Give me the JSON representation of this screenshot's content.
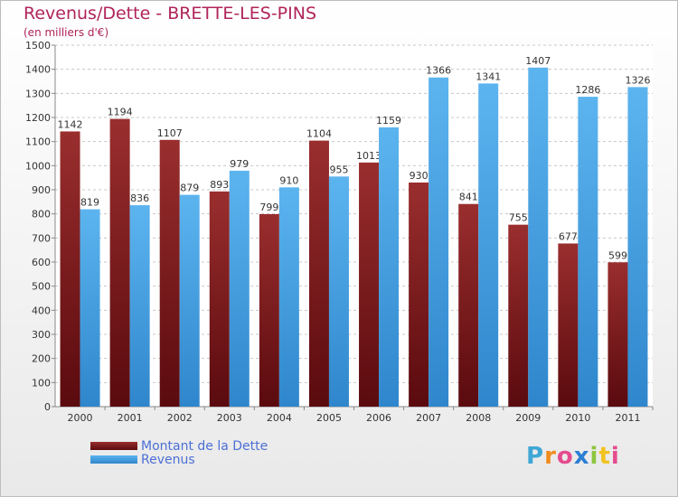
{
  "title": "Revenus/Dette - BRETTE-LES-PINS",
  "subtitle": "(en milliers d'€)",
  "logo": {
    "text": "Proxiti",
    "letters": [
      "P",
      "r",
      "o",
      "x",
      "i",
      "t",
      "i"
    ],
    "colors": [
      "#3fa7d6",
      "#f28c1e",
      "#e54b8f",
      "#2d7fd3",
      "#8dc63f",
      "#f2c21e",
      "#e54b8f"
    ]
  },
  "chart_data": {
    "type": "bar",
    "categories": [
      "2000",
      "2001",
      "2002",
      "2003",
      "2004",
      "2005",
      "2006",
      "2007",
      "2008",
      "2009",
      "2010",
      "2011"
    ],
    "series": [
      {
        "name": "Montant de la Dette",
        "color": "#7a1e22",
        "values": [
          1142,
          1194,
          1107,
          893,
          799,
          1104,
          1013,
          930,
          841,
          755,
          677,
          599
        ]
      },
      {
        "name": "Revenus",
        "color": "#4aa3e6",
        "values": [
          819,
          836,
          879,
          979,
          910,
          955,
          1159,
          1366,
          1341,
          1407,
          1286,
          1326
        ]
      }
    ],
    "yticks": [
      0,
      100,
      200,
      300,
      400,
      500,
      600,
      700,
      800,
      900,
      1000,
      1100,
      1200,
      1300,
      1400,
      1500
    ],
    "ylim": [
      0,
      1500
    ],
    "grid": true,
    "legend": "bottom-left"
  }
}
